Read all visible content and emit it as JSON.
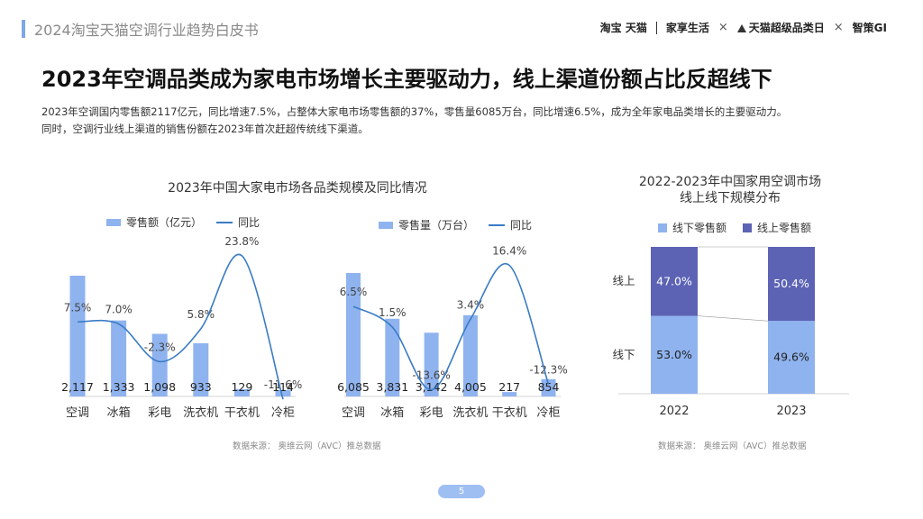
{
  "header": {
    "title": "2024淘宝天猫空调行业趋势白皮书"
  },
  "brands": {
    "taobao": "淘宝 天猫",
    "jiaxiang": "家享生活",
    "superday": "天猫超级品类日",
    "zhice": "智策GI",
    "x": "×"
  },
  "headline": "2023年空调品类成为家电市场增长主要驱动力，线上渠道份额占比反超线下",
  "description": [
    "2023年空调国内零售额2117亿元，同比增速7.5%，占整体大家电市场零售额的37%，零售量6085万台，同比增速6.5%，成为全年家电品类增长的主要驱动力。",
    "同时，空调行业线上渠道的销售份额在2023年首次赶超传统线下渠道。"
  ],
  "left_title": "2023年中国大家电市场各品类规模及同比情况",
  "right_title_1": "2022-2023年中国家用空调市场",
  "right_title_2": "线上线下规模分布",
  "source": "数据来源：  奥维云网（AVC）推总数据",
  "page_number": "5",
  "colors": {
    "bar": "#8fb3ef",
    "line": "#3a7cc6",
    "online": "#5c63b5",
    "offline": "#8fb3ef"
  },
  "chart_data": [
    {
      "type": "bar",
      "title": "2023年中国大家电市场各品类规模及同比情况",
      "legend": [
        "零售额（亿元）",
        "同比"
      ],
      "categories": [
        "空调",
        "冰箱",
        "彩电",
        "洗衣机",
        "干衣机",
        "冷柜"
      ],
      "series": [
        {
          "name": "零售额（亿元）",
          "type": "bar",
          "values": [
            2117,
            1333,
            1098,
            933,
            129,
            114
          ],
          "labels": [
            "2,117",
            "1,333",
            "1,098",
            "933",
            "129",
            "114"
          ]
        },
        {
          "name": "同比",
          "type": "line",
          "values": [
            7.5,
            7.0,
            -2.3,
            5.8,
            23.8,
            -11.6
          ],
          "labels": [
            "7.5%",
            "7.0%",
            "-2.3%",
            "5.8%",
            "23.8%",
            "-11.6%"
          ]
        }
      ]
    },
    {
      "type": "bar",
      "legend": [
        "零售量（万台）",
        "同比"
      ],
      "categories": [
        "空调",
        "冰箱",
        "彩电",
        "洗衣机",
        "干衣机",
        "冷柜"
      ],
      "series": [
        {
          "name": "零售量（万台）",
          "type": "bar",
          "values": [
            6085,
            3831,
            3142,
            4005,
            217,
            854
          ],
          "labels": [
            "6,085",
            "3,831",
            "3,142",
            "4,005",
            "217",
            "854"
          ]
        },
        {
          "name": "同比",
          "type": "line",
          "values": [
            6.5,
            1.5,
            -13.6,
            3.4,
            16.4,
            -12.3
          ],
          "labels": [
            "6.5%",
            "1.5%",
            "-13.6%",
            "3.4%",
            "16.4%",
            "-12.3%"
          ]
        }
      ]
    },
    {
      "type": "bar",
      "stacked": true,
      "title": "2022-2023年中国家用空调市场线上线下规模分布",
      "legend": [
        "线下零售额",
        "线上零售额"
      ],
      "categories": [
        "2022",
        "2023"
      ],
      "series": [
        {
          "name": "线下零售额",
          "values": [
            53.0,
            49.6
          ],
          "labels": [
            "53.0%",
            "49.6%"
          ]
        },
        {
          "name": "线上零售额",
          "values": [
            47.0,
            50.4
          ],
          "labels": [
            "47.0%",
            "50.4%"
          ]
        }
      ],
      "row_labels": [
        "线上",
        "线下"
      ]
    }
  ]
}
